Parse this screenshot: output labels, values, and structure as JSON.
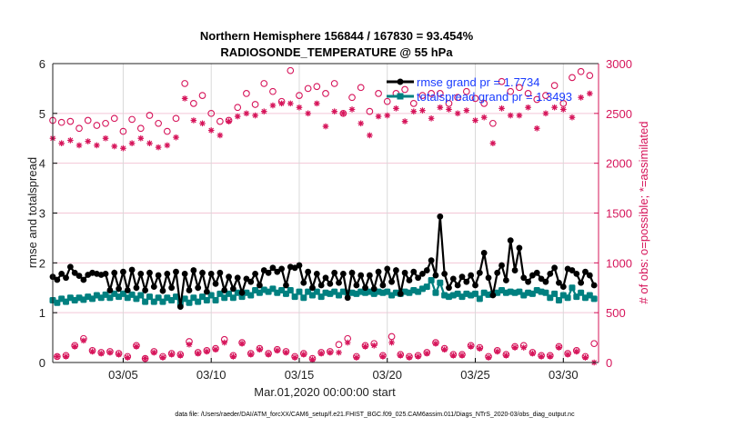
{
  "chart_data": {
    "type": "line",
    "title": [
      "Northern Hemisphere 156844 / 167830 = 93.454%",
      "RADIOSONDE_TEMPERATURE @ 55 hPa"
    ],
    "xlabel": "Mar.01,2020 00:00:00 start",
    "ylabel_left": "rmse and totalspread",
    "ylabel_right": "# of obs: o=possible; *=assimilated",
    "footer": "data file: /Users/raeder/DAI/ATM_forcXX/CAM6_setup/f.e21.FHIST_BGC.f09_025.CAM6assim.011/Diags_NTrS_2020-03/obs_diag_output.nc",
    "xlim": [
      "2020-03-01 00:00",
      "2020-04-01 00:00"
    ],
    "x_start": "2020-03-01 00:00",
    "x_step_hours": 6,
    "x_ticks": [
      {
        "day": 5,
        "label": "03/05"
      },
      {
        "day": 10,
        "label": "03/10"
      },
      {
        "day": 15,
        "label": "03/15"
      },
      {
        "day": 20,
        "label": "03/20"
      },
      {
        "day": 25,
        "label": "03/25"
      },
      {
        "day": 30,
        "label": "03/30"
      }
    ],
    "ylim_left": [
      0,
      6
    ],
    "yticks_left": [
      "0",
      "1",
      "2",
      "3",
      "4",
      "5",
      "6"
    ],
    "ylim_right": [
      0,
      3000
    ],
    "yticks_right": [
      "0",
      "500",
      "1000",
      "1500",
      "2000",
      "2500",
      "3000"
    ],
    "grid": true,
    "legend_placement": "top-right",
    "colors": {
      "rmse": "#000000",
      "totalspread": "#008080",
      "obs": "#d6145a",
      "legend_text": "#1a3cff"
    },
    "series": [
      {
        "name": "rmse grand pr = 1.7734",
        "axis": "left",
        "marker": "asterisk-filled",
        "values": [
          1.72,
          1.66,
          1.78,
          1.7,
          1.92,
          1.8,
          1.74,
          1.66,
          1.76,
          1.8,
          1.78,
          1.76,
          1.78,
          1.45,
          1.8,
          1.48,
          1.82,
          1.45,
          1.86,
          1.5,
          1.78,
          1.45,
          1.8,
          1.52,
          1.75,
          1.44,
          1.78,
          1.5,
          1.82,
          1.12,
          1.78,
          1.45,
          1.85,
          1.5,
          1.8,
          1.42,
          1.78,
          1.58,
          1.8,
          1.45,
          1.72,
          1.48,
          1.7,
          1.4,
          1.68,
          1.62,
          1.78,
          1.55,
          1.85,
          1.8,
          1.9,
          1.82,
          1.88,
          1.55,
          1.92,
          1.9,
          1.95,
          1.6,
          1.82,
          1.5,
          1.78,
          1.55,
          1.7,
          1.58,
          1.8,
          1.6,
          1.78,
          1.3,
          1.8,
          1.55,
          1.75,
          1.5,
          1.75,
          1.48,
          1.82,
          1.55,
          1.88,
          1.62,
          1.85,
          1.38,
          1.8,
          1.65,
          1.82,
          1.7,
          1.78,
          1.85,
          2.05,
          1.75,
          2.93,
          1.78,
          1.5,
          1.68,
          1.55,
          1.72,
          1.62,
          1.75,
          1.55,
          1.8,
          2.2,
          1.7,
          1.35,
          1.8,
          1.95,
          1.65,
          2.45,
          1.85,
          2.3,
          1.7,
          1.62,
          1.75,
          1.8,
          1.68,
          1.62,
          1.78,
          1.9,
          1.6,
          1.52,
          1.88,
          1.85,
          1.78,
          1.6,
          1.82,
          1.75,
          1.55
        ]
      },
      {
        "name": "totalspread grand pr = 1.3493",
        "axis": "left",
        "marker": "square-filled",
        "values": [
          1.25,
          1.2,
          1.28,
          1.22,
          1.3,
          1.25,
          1.3,
          1.26,
          1.32,
          1.28,
          1.35,
          1.3,
          1.36,
          1.3,
          1.38,
          1.32,
          1.38,
          1.3,
          1.36,
          1.28,
          1.35,
          1.22,
          1.32,
          1.22,
          1.3,
          1.22,
          1.3,
          1.25,
          1.32,
          1.18,
          1.28,
          1.2,
          1.3,
          1.22,
          1.32,
          1.25,
          1.35,
          1.25,
          1.38,
          1.3,
          1.38,
          1.3,
          1.4,
          1.32,
          1.4,
          1.35,
          1.45,
          1.4,
          1.46,
          1.42,
          1.48,
          1.4,
          1.45,
          1.38,
          1.45,
          1.32,
          1.42,
          1.3,
          1.42,
          1.35,
          1.42,
          1.32,
          1.4,
          1.38,
          1.42,
          1.35,
          1.42,
          1.4,
          1.4,
          1.38,
          1.42,
          1.4,
          1.42,
          1.38,
          1.42,
          1.4,
          1.42,
          1.35,
          1.4,
          1.38,
          1.42,
          1.4,
          1.45,
          1.42,
          1.48,
          1.52,
          1.65,
          1.4,
          1.6,
          1.35,
          1.32,
          1.35,
          1.38,
          1.32,
          1.38,
          1.35,
          1.38,
          1.28,
          1.4,
          1.36,
          1.38,
          1.4,
          1.45,
          1.4,
          1.42,
          1.4,
          1.42,
          1.35,
          1.4,
          1.38,
          1.45,
          1.42,
          1.4,
          1.3,
          1.38,
          1.25,
          1.35,
          1.3,
          1.5,
          1.32,
          1.4,
          1.3,
          1.35,
          1.28
        ]
      },
      {
        "name": "possible",
        "axis": "right",
        "marker": "o",
        "values": [
          2430,
          60,
          2410,
          70,
          2420,
          170,
          2350,
          240,
          2430,
          120,
          2380,
          100,
          2400,
          110,
          2450,
          90,
          2320,
          60,
          2440,
          170,
          2350,
          40,
          2480,
          110,
          2400,
          60,
          2320,
          90,
          2450,
          80,
          2800,
          210,
          2600,
          100,
          2680,
          120,
          2500,
          140,
          2420,
          230,
          2430,
          70,
          2560,
          200,
          2700,
          90,
          2590,
          140,
          2800,
          90,
          2720,
          130,
          2620,
          110,
          2930,
          60,
          2680,
          90,
          2750,
          40,
          2770,
          100,
          2700,
          110,
          2800,
          180,
          2500,
          240,
          2660,
          60,
          2760,
          170,
          2520,
          190,
          2700,
          70,
          2620,
          260,
          2700,
          80,
          2740,
          60,
          2600,
          70,
          2680,
          100,
          2700,
          200,
          2700,
          140,
          2600,
          80,
          2660,
          80,
          2720,
          170,
          2650,
          150,
          2600,
          60,
          2400,
          120,
          2820,
          80,
          2720,
          160,
          2760,
          170,
          2700,
          100,
          2640,
          70,
          2680,
          70,
          2780,
          160,
          2600,
          90,
          2860,
          120,
          2920,
          60,
          2880,
          190
        ]
      },
      {
        "name": "assimilated",
        "axis": "right",
        "marker": "*",
        "values": [
          2250,
          60,
          2200,
          60,
          2230,
          160,
          2180,
          220,
          2220,
          110,
          2180,
          90,
          2250,
          100,
          2170,
          80,
          2150,
          50,
          2200,
          160,
          2250,
          40,
          2200,
          100,
          2160,
          50,
          2180,
          80,
          2260,
          70,
          2650,
          180,
          2430,
          90,
          2400,
          110,
          2330,
          130,
          2280,
          200,
          2420,
          60,
          2470,
          190,
          2500,
          80,
          2480,
          130,
          2520,
          80,
          2580,
          120,
          2600,
          100,
          2600,
          50,
          2560,
          80,
          2500,
          30,
          2600,
          90,
          2370,
          100,
          2520,
          100,
          2500,
          200,
          2540,
          50,
          2400,
          160,
          2280,
          170,
          2470,
          60,
          2480,
          200,
          2550,
          70,
          2420,
          50,
          2520,
          60,
          2530,
          90,
          2450,
          190,
          2560,
          130,
          2540,
          70,
          2500,
          70,
          2530,
          160,
          2430,
          140,
          2460,
          50,
          2200,
          110,
          2550,
          70,
          2480,
          150,
          2480,
          150,
          2560,
          90,
          2350,
          60,
          2500,
          60,
          2560,
          150,
          2540,
          80,
          2460,
          110,
          2660,
          50,
          2700,
          0
        ]
      }
    ]
  }
}
